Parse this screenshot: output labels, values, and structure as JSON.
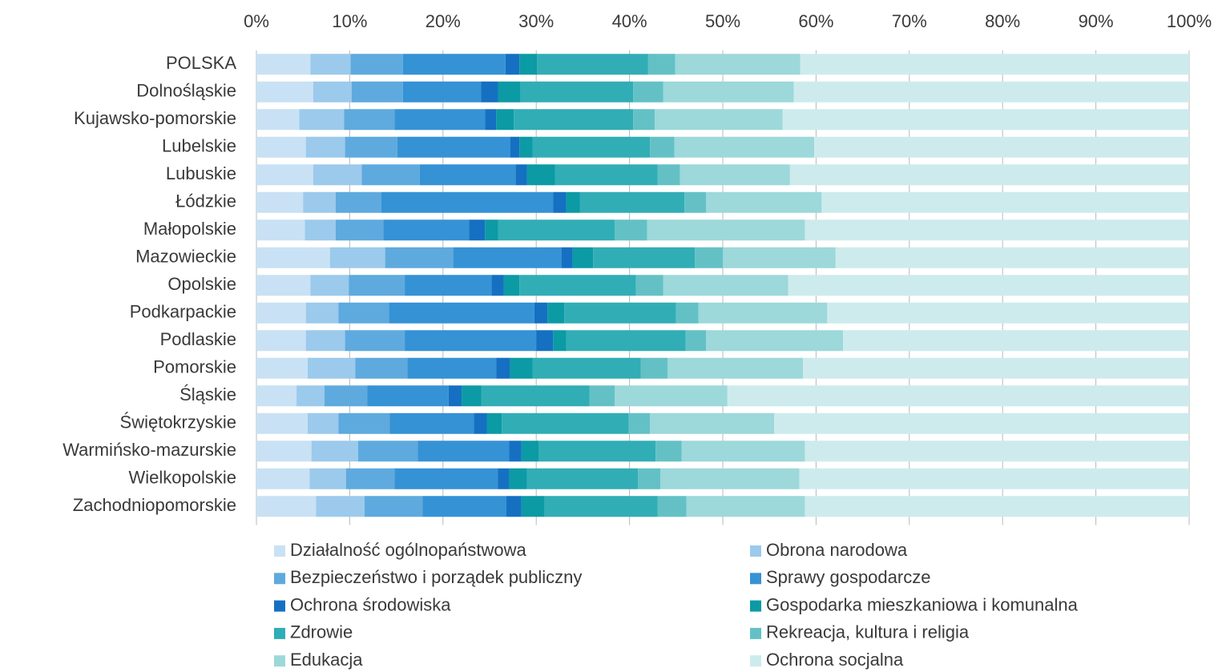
{
  "chart_data": {
    "type": "stacked_bar_horizontal",
    "categories": [
      "POLSKA",
      "Dolnośląskie",
      "Kujawsko-pomorskie",
      "Lubelskie",
      "Lubuskie",
      "Łódzkie",
      "Małopolskie",
      "Mazowieckie",
      "Opolskie",
      "Podkarpackie",
      "Podlaskie",
      "Pomorskie",
      "Śląskie",
      "Świętokrzyskie",
      "Warmińsko-mazurskie",
      "Wielkopolskie",
      "Zachodniopomorskie"
    ],
    "xlim": [
      0,
      100
    ],
    "xticks": [
      {
        "value": 0,
        "label": "0%"
      },
      {
        "value": 10,
        "label": "10%"
      },
      {
        "value": 20,
        "label": "20%"
      },
      {
        "value": 30,
        "label": "30%"
      },
      {
        "value": 40,
        "label": "40%"
      },
      {
        "value": 50,
        "label": "50%"
      },
      {
        "value": 60,
        "label": "60%"
      },
      {
        "value": 70,
        "label": "70%"
      },
      {
        "value": 80,
        "label": "80%"
      },
      {
        "value": 90,
        "label": "90%"
      },
      {
        "value": 100,
        "label": "100%"
      }
    ],
    "grid": true,
    "series": [
      {
        "name": "Działalność ogólnopaństwowa",
        "color": "#c9e1f4",
        "values": [
          5.8,
          6.1,
          4.6,
          5.3,
          6.1,
          5.0,
          5.2,
          7.9,
          5.8,
          5.3,
          5.3,
          5.5,
          4.3,
          5.5,
          5.9,
          5.7,
          6.4
        ]
      },
      {
        "name": "Obrona narodowa",
        "color": "#9bcaec",
        "values": [
          4.3,
          4.1,
          4.8,
          4.2,
          5.2,
          3.5,
          3.3,
          5.9,
          4.1,
          3.5,
          4.2,
          5.1,
          3.0,
          3.3,
          5.0,
          3.9,
          5.2
        ]
      },
      {
        "name": "Bezpieczeństwo i porządek publiczny",
        "color": "#5eaade",
        "values": [
          5.6,
          5.5,
          5.4,
          5.6,
          6.2,
          4.9,
          5.1,
          7.3,
          6.0,
          5.4,
          6.4,
          5.6,
          4.6,
          5.5,
          6.4,
          5.2,
          6.2
        ]
      },
      {
        "name": "Sprawy gospodarcze",
        "color": "#3592d5",
        "values": [
          11.0,
          8.4,
          9.7,
          12.1,
          10.3,
          18.4,
          9.2,
          11.6,
          9.3,
          15.6,
          14.1,
          9.5,
          8.7,
          9.0,
          9.8,
          11.1,
          9.0
        ]
      },
      {
        "name": "Ochrona środowiska",
        "color": "#1570c2",
        "values": [
          1.5,
          1.8,
          1.2,
          1.0,
          1.2,
          1.4,
          1.7,
          1.2,
          1.3,
          1.4,
          1.8,
          1.5,
          1.4,
          1.4,
          1.3,
          1.2,
          1.6
        ]
      },
      {
        "name": "Gospodarka mieszkaniowa i komunalna",
        "color": "#0c9aa5",
        "values": [
          1.9,
          2.4,
          1.9,
          1.4,
          3.0,
          1.5,
          1.4,
          2.2,
          1.7,
          1.8,
          1.4,
          2.4,
          2.1,
          1.6,
          1.9,
          1.9,
          2.5
        ]
      },
      {
        "name": "Zdrowie",
        "color": "#31adb6",
        "values": [
          11.9,
          12.1,
          12.8,
          12.6,
          11.0,
          11.2,
          12.5,
          10.9,
          12.5,
          12.0,
          12.8,
          11.6,
          11.6,
          13.6,
          12.5,
          11.9,
          12.1
        ]
      },
      {
        "name": "Rekreacja, kultura i religia",
        "color": "#63c1c6",
        "values": [
          2.9,
          3.2,
          2.3,
          2.6,
          2.4,
          2.3,
          3.5,
          3.0,
          2.9,
          2.4,
          2.2,
          2.9,
          2.7,
          2.3,
          2.8,
          2.4,
          3.1
        ]
      },
      {
        "name": "Edukacja",
        "color": "#9dd8da",
        "values": [
          13.4,
          14.0,
          13.7,
          15.0,
          11.8,
          12.4,
          16.9,
          12.1,
          13.4,
          13.8,
          14.7,
          14.5,
          12.1,
          13.3,
          13.2,
          14.9,
          12.7
        ]
      },
      {
        "name": "Ochrona socjalna",
        "color": "#cdebed",
        "values": [
          41.7,
          42.4,
          43.6,
          40.2,
          42.8,
          39.4,
          41.2,
          37.9,
          43.0,
          38.8,
          37.1,
          41.4,
          49.5,
          44.5,
          41.2,
          41.8,
          41.2
        ]
      }
    ]
  }
}
